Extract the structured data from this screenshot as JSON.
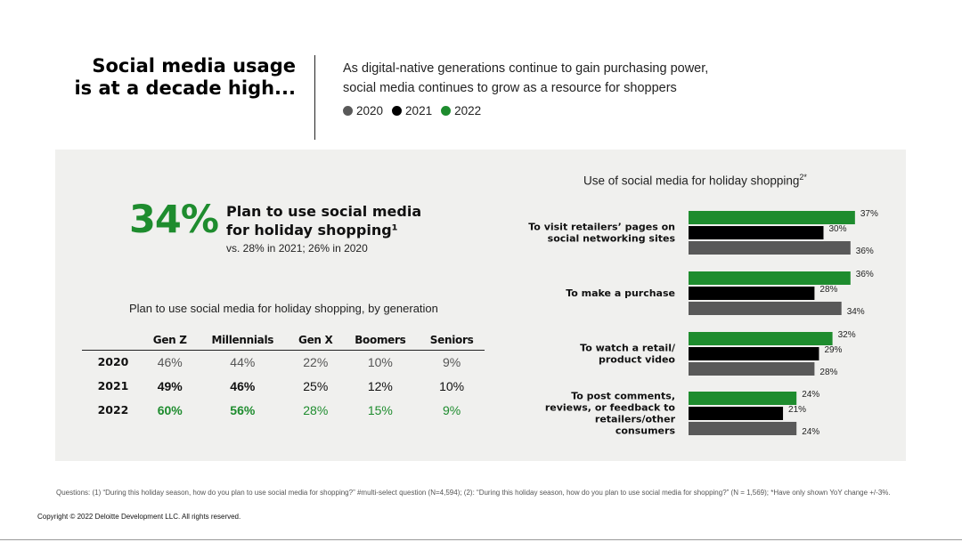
{
  "header": {
    "title_line1": "Social media usage",
    "title_line2": "is at a decade high...",
    "intro_line1": "As digital-native generations continue to gain purchasing power,",
    "intro_line2": "social media continues to grow as a resource for shoppers",
    "legend": [
      {
        "label": "2020",
        "color": "#595959"
      },
      {
        "label": "2021",
        "color": "#000000"
      },
      {
        "label": "2022",
        "color": "#1e8c2e"
      }
    ]
  },
  "highlight": {
    "percent": "34%",
    "label_line1": "Plan to use social media",
    "label_line2": "for holiday shopping¹",
    "comparison": "vs. 28% in 2021; 26% in 2020"
  },
  "generation_table": {
    "caption": "Plan to use social media for holiday shopping, by generation",
    "headers": [
      "Gen Z",
      "Millennials",
      "Gen X",
      "Boomers",
      "Seniors"
    ],
    "rows": [
      {
        "year": "2020",
        "values": [
          "46%",
          "44%",
          "22%",
          "10%",
          "9%"
        ]
      },
      {
        "year": "2021",
        "values": [
          "49%",
          "46%",
          "25%",
          "12%",
          "10%"
        ]
      },
      {
        "year": "2022",
        "values": [
          "60%",
          "56%",
          "28%",
          "15%",
          "9%"
        ]
      }
    ]
  },
  "chart_data": {
    "type": "bar",
    "orientation": "horizontal",
    "title": "Use of social media for holiday shopping",
    "title_sup": "2*",
    "categories": [
      [
        "To visit retailers’ pages on",
        "social networking sites"
      ],
      [
        "To make a purchase"
      ],
      [
        "To watch a retail/",
        "product video"
      ],
      [
        "To post comments,",
        "reviews, or feedback to",
        "retailers/other",
        "consumers"
      ]
    ],
    "series": [
      {
        "name": "2022",
        "color": "#1e8c2e",
        "values": [
          37,
          36,
          32,
          24
        ]
      },
      {
        "name": "2021",
        "color": "#000000",
        "values": [
          30,
          28,
          29,
          21
        ]
      },
      {
        "name": "2020",
        "color": "#595959",
        "values": [
          36,
          34,
          28,
          24
        ]
      }
    ],
    "value_suffix": "%",
    "xlim": [
      0,
      40
    ],
    "grid": false
  },
  "footer": {
    "footnote": "Questions: (1) “During this holiday season, how do you plan to use social media for shopping?” #multi-select question (N=4,594); (2): “During this holiday season, how do you plan to use social media for shopping?” (N = 1,569); *Have only shown YoY change +/-3%.",
    "copyright": "Copyright © 2022 Deloitte Development LLC. All rights reserved."
  }
}
